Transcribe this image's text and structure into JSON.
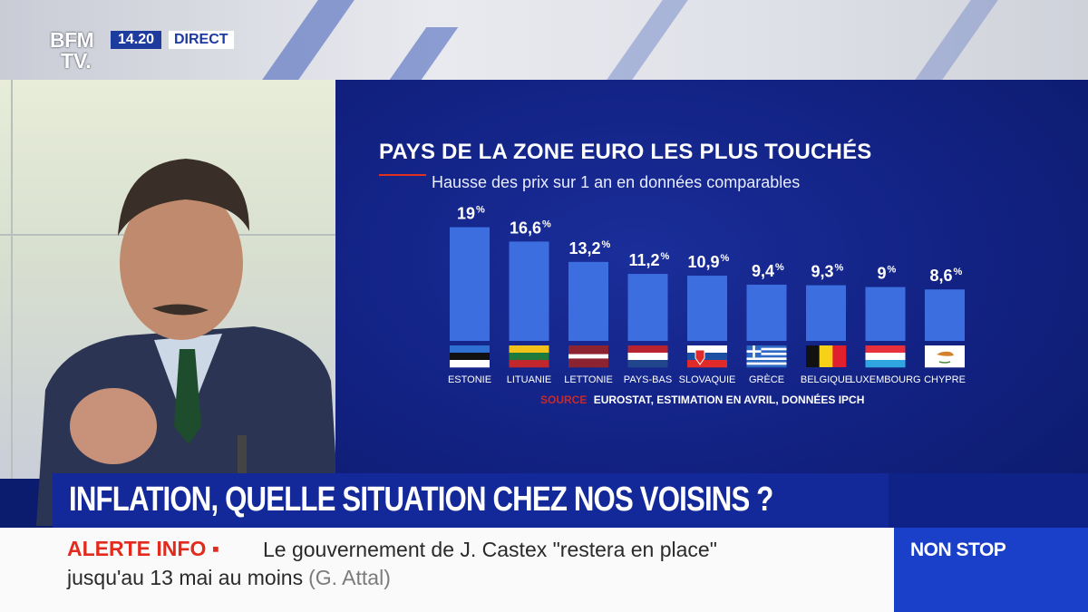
{
  "header": {
    "logo_line1": "BFM",
    "logo_line2": "TV.",
    "time": "14.20",
    "live": "DIRECT"
  },
  "chart_data": {
    "type": "bar",
    "title": "PAYS DE LA ZONE EURO LES PLUS TOUCHÉS",
    "subtitle": "Hausse des prix sur 1 an en données comparables",
    "categories": [
      "ESTONIE",
      "LITUANIE",
      "LETTONIE",
      "PAYS-BAS",
      "SLOVAQUIE",
      "GRÈCE",
      "BELGIQUE",
      "LUXEMBOURG",
      "CHYPRE"
    ],
    "values": [
      19,
      16.6,
      13.2,
      11.2,
      10.9,
      9.4,
      9.3,
      9,
      8.6
    ],
    "value_labels": [
      "19",
      "16,6",
      "13,2",
      "11,2",
      "10,9",
      "9,4",
      "9,3",
      "9",
      "8,6"
    ],
    "unit": "%",
    "bar_color": "#3d6ee0",
    "flags": [
      "estonia-flag-icon",
      "lithuania-flag-icon",
      "latvia-flag-icon",
      "netherlands-flag-icon",
      "slovakia-flag-icon",
      "greece-flag-icon",
      "belgium-flag-icon",
      "luxembourg-flag-icon",
      "cyprus-flag-icon"
    ],
    "source_label": "SOURCE",
    "source_text": "EUROSTAT, ESTIMATION EN AVRIL, DONNÉES IPCH"
  },
  "banner": {
    "headline": "INFLATION, QUELLE SITUATION CHEZ NOS VOISINS ?"
  },
  "ticker": {
    "label": "ALERTE INFO ▪",
    "line1": "Le gouvernement de J. Castex \"restera en place\"",
    "line2": "jusqu'au 13 mai au moins",
    "attribution": "(G. Attal)"
  },
  "corner": {
    "label": "NON STOP"
  },
  "colors": {
    "alert_red": "#e22b1e",
    "brand_blue": "#13299a",
    "nonstop_blue": "#1a3fc8"
  }
}
